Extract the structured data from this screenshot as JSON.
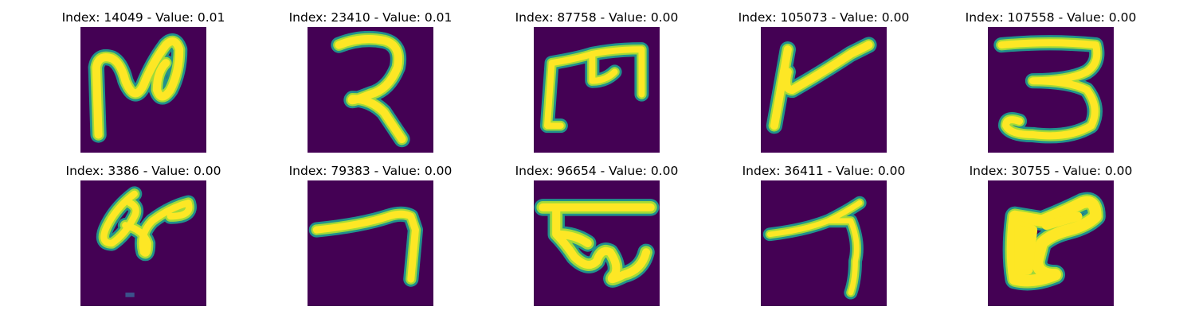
{
  "colors": {
    "background": "#440154",
    "stroke_core": "#fde725",
    "stroke_mid": "#a0da39",
    "stroke_edge": "#21918c"
  },
  "panels": [
    {
      "title": "Index: 14049 - Value: 0.01",
      "glyph": "glyph-1"
    },
    {
      "title": "Index: 23410 - Value: 0.01",
      "glyph": "glyph-2"
    },
    {
      "title": "Index: 87758 - Value: 0.00",
      "glyph": "glyph-3"
    },
    {
      "title": "Index: 105073 - Value: 0.00",
      "glyph": "glyph-4"
    },
    {
      "title": "Index: 107558 - Value: 0.00",
      "glyph": "glyph-5"
    },
    {
      "title": "Index: 3386 - Value: 0.00",
      "glyph": "glyph-6"
    },
    {
      "title": "Index: 79383 - Value: 0.00",
      "glyph": "glyph-7"
    },
    {
      "title": "Index: 96654 - Value: 0.00",
      "glyph": "glyph-8"
    },
    {
      "title": "Index: 36411 - Value: 0.00",
      "glyph": "glyph-9"
    },
    {
      "title": "Index: 30755 - Value: 0.00",
      "glyph": "glyph-10"
    }
  ]
}
